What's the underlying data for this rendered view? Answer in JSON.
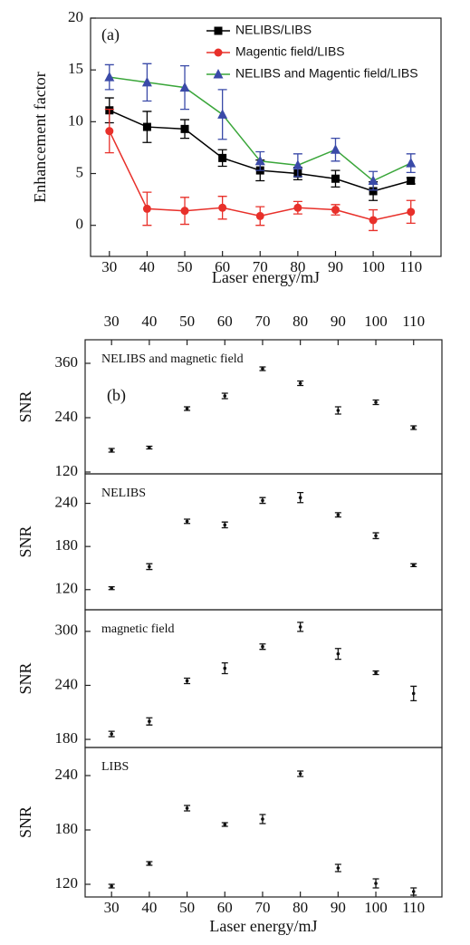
{
  "chart_data": [
    {
      "type": "line",
      "panel_label": "(a)",
      "x_label": "Laser energy/mJ",
      "y_label": "Enhancement factor",
      "x": [
        30,
        40,
        50,
        60,
        70,
        80,
        90,
        100,
        110
      ],
      "xlim": [
        25,
        118
      ],
      "xticks": [
        30,
        40,
        50,
        60,
        70,
        80,
        90,
        100,
        110
      ],
      "ylim": [
        -3,
        20
      ],
      "yticks": [
        0,
        5,
        10,
        15,
        20
      ],
      "series": [
        {
          "name": "NELIBS/LIBS",
          "color": "#000000",
          "marker": "square",
          "values": [
            11.1,
            9.5,
            9.3,
            6.5,
            5.3,
            5.0,
            4.5,
            3.3,
            4.3
          ],
          "errors": [
            1.2,
            1.5,
            0.9,
            0.8,
            1.0,
            0.6,
            0.8,
            0.9,
            0.3
          ]
        },
        {
          "name": "Magentic field/LIBS",
          "color": "#e8302a",
          "marker": "circle",
          "values": [
            9.1,
            1.6,
            1.4,
            1.7,
            0.9,
            1.7,
            1.5,
            0.5,
            1.3
          ],
          "errors": [
            2.1,
            1.6,
            1.3,
            1.1,
            0.9,
            0.6,
            0.5,
            1.0,
            1.1
          ]
        },
        {
          "name": "NELIBS and Magentic field/LIBS",
          "color": "#3a4aa8",
          "line_color": "#3aa63a",
          "marker": "triangle",
          "values": [
            14.3,
            13.8,
            13.3,
            10.7,
            6.2,
            5.8,
            7.3,
            4.3,
            6.0
          ],
          "errors": [
            1.2,
            1.8,
            2.1,
            2.4,
            0.9,
            1.1,
            1.1,
            0.9,
            0.9
          ]
        }
      ]
    },
    {
      "type": "scatter",
      "panel_label": "(b)",
      "annotation": "NELIBS and magnetic field",
      "y_label": "SNR",
      "x": [
        30,
        40,
        50,
        60,
        70,
        80,
        90,
        100,
        110
      ],
      "xlim": [
        23,
        117.5
      ],
      "xticks": [
        30,
        40,
        50,
        60,
        70,
        80,
        90,
        100,
        110
      ],
      "ylim": [
        116,
        412
      ],
      "yticks": [
        120,
        240,
        360
      ],
      "values": [
        168,
        174,
        260,
        288,
        348,
        316,
        256,
        274,
        218
      ],
      "errors": [
        4,
        3,
        4,
        6,
        4,
        5,
        8,
        5,
        4
      ]
    },
    {
      "type": "scatter",
      "annotation": "NELIBS",
      "y_label": "SNR",
      "x": [
        30,
        40,
        50,
        60,
        70,
        80,
        90,
        100,
        110
      ],
      "xlim": [
        23,
        117.5
      ],
      "ylim": [
        92,
        281
      ],
      "yticks": [
        120,
        180,
        240
      ],
      "values": [
        122,
        152,
        215,
        210,
        244,
        248,
        224,
        195,
        154
      ],
      "errors": [
        2,
        4,
        3,
        4,
        4,
        7,
        3,
        4,
        2
      ]
    },
    {
      "type": "scatter",
      "annotation": "magnetic field",
      "y_label": "SNR",
      "x": [
        30,
        40,
        50,
        60,
        70,
        80,
        90,
        100,
        110
      ],
      "xlim": [
        23,
        117.5
      ],
      "ylim": [
        171,
        324
      ],
      "yticks": [
        180,
        240,
        300
      ],
      "values": [
        186,
        200,
        245,
        259,
        283,
        305,
        275,
        254,
        231
      ],
      "errors": [
        3,
        4,
        3,
        6,
        3,
        5,
        6,
        2,
        8
      ]
    },
    {
      "type": "scatter",
      "annotation": "LIBS",
      "y_label": "SNR",
      "x_label": "Laser energy/mJ",
      "x": [
        30,
        40,
        50,
        60,
        70,
        80,
        90,
        100,
        110
      ],
      "xlim": [
        23,
        117.5
      ],
      "xticks": [
        30,
        40,
        50,
        60,
        70,
        80,
        90,
        100,
        110
      ],
      "ylim": [
        106,
        271
      ],
      "yticks": [
        120,
        180,
        240
      ],
      "values": [
        118,
        143,
        204,
        186,
        192,
        242,
        138,
        121,
        112
      ],
      "errors": [
        2,
        2,
        3,
        2,
        5,
        3,
        4,
        5,
        4
      ]
    }
  ]
}
